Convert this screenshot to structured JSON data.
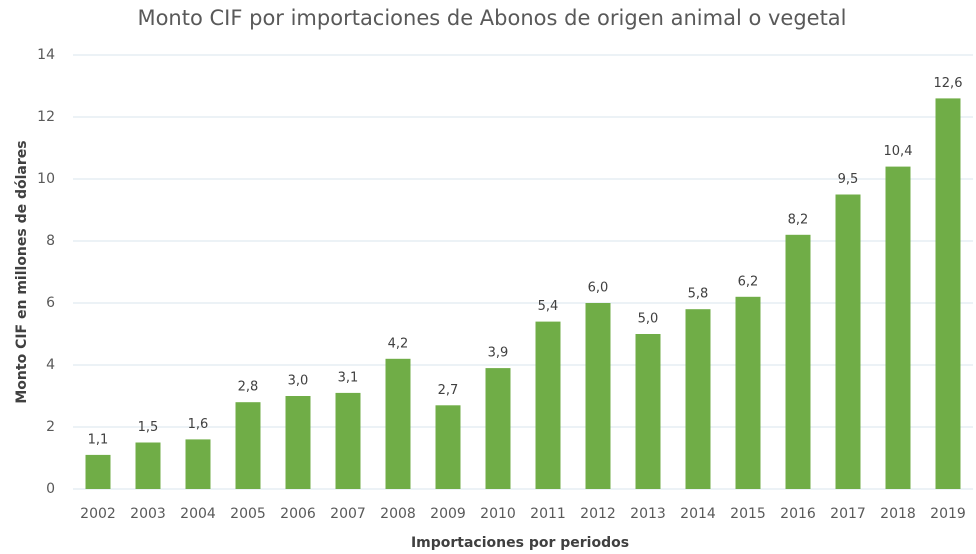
{
  "chart_data": {
    "type": "bar",
    "title": "Monto CIF por importaciones de Abonos de origen animal o vegetal",
    "x_label": "Importaciones por periodos",
    "y_label": "Monto CIF en millones de dólares",
    "categories": [
      "2002",
      "2003",
      "2004",
      "2005",
      "2006",
      "2007",
      "2008",
      "2009",
      "2010",
      "2011",
      "2012",
      "2013",
      "2014",
      "2015",
      "2016",
      "2017",
      "2018",
      "2019"
    ],
    "values": [
      1.1,
      1.5,
      1.6,
      2.8,
      3.0,
      3.1,
      4.2,
      2.7,
      3.9,
      5.4,
      6.0,
      5.0,
      5.8,
      6.2,
      8.2,
      9.5,
      10.4,
      12.6
    ],
    "value_labels": [
      "1,1",
      "1,5",
      "1,6",
      "2,8",
      "3,0",
      "3,1",
      "4,2",
      "2,7",
      "3,9",
      "5,4",
      "6,0",
      "5,0",
      "5,8",
      "6,2",
      "8,2",
      "9,5",
      "10,4",
      "12,6"
    ],
    "color": "#70ad47",
    "ylim": [
      0,
      14
    ],
    "yticks": [
      0,
      2,
      4,
      6,
      8,
      10,
      12,
      14
    ],
    "grid": true
  }
}
